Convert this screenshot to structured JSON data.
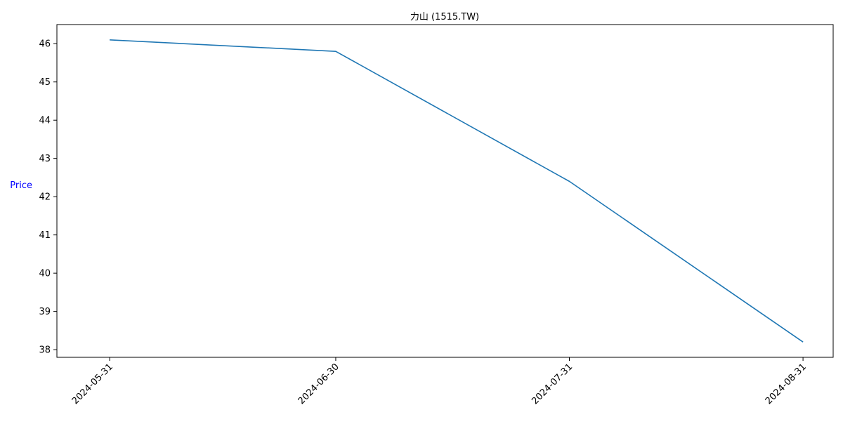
{
  "chart_data": {
    "type": "line",
    "title": "力山 (1515.TW)",
    "xlabel": "",
    "ylabel": "Price",
    "ylabel_color": "#0000ff",
    "line_color": "#1f77b4",
    "x": [
      "2024-05-31",
      "2024-06-30",
      "2024-07-31",
      "2024-08-31"
    ],
    "series": [
      {
        "values": [
          46.1,
          45.8,
          42.4,
          38.2
        ]
      }
    ],
    "x_ticks": [
      "2024-05-31",
      "2024-06-30",
      "2024-07-31",
      "2024-08-31"
    ],
    "x_range": [
      "2024-05-24",
      "2024-09-04"
    ],
    "y_ticks": [
      38,
      39,
      40,
      41,
      42,
      43,
      44,
      45,
      46
    ],
    "ylim": [
      37.8,
      46.5
    ],
    "grid": false,
    "legend": "none"
  }
}
